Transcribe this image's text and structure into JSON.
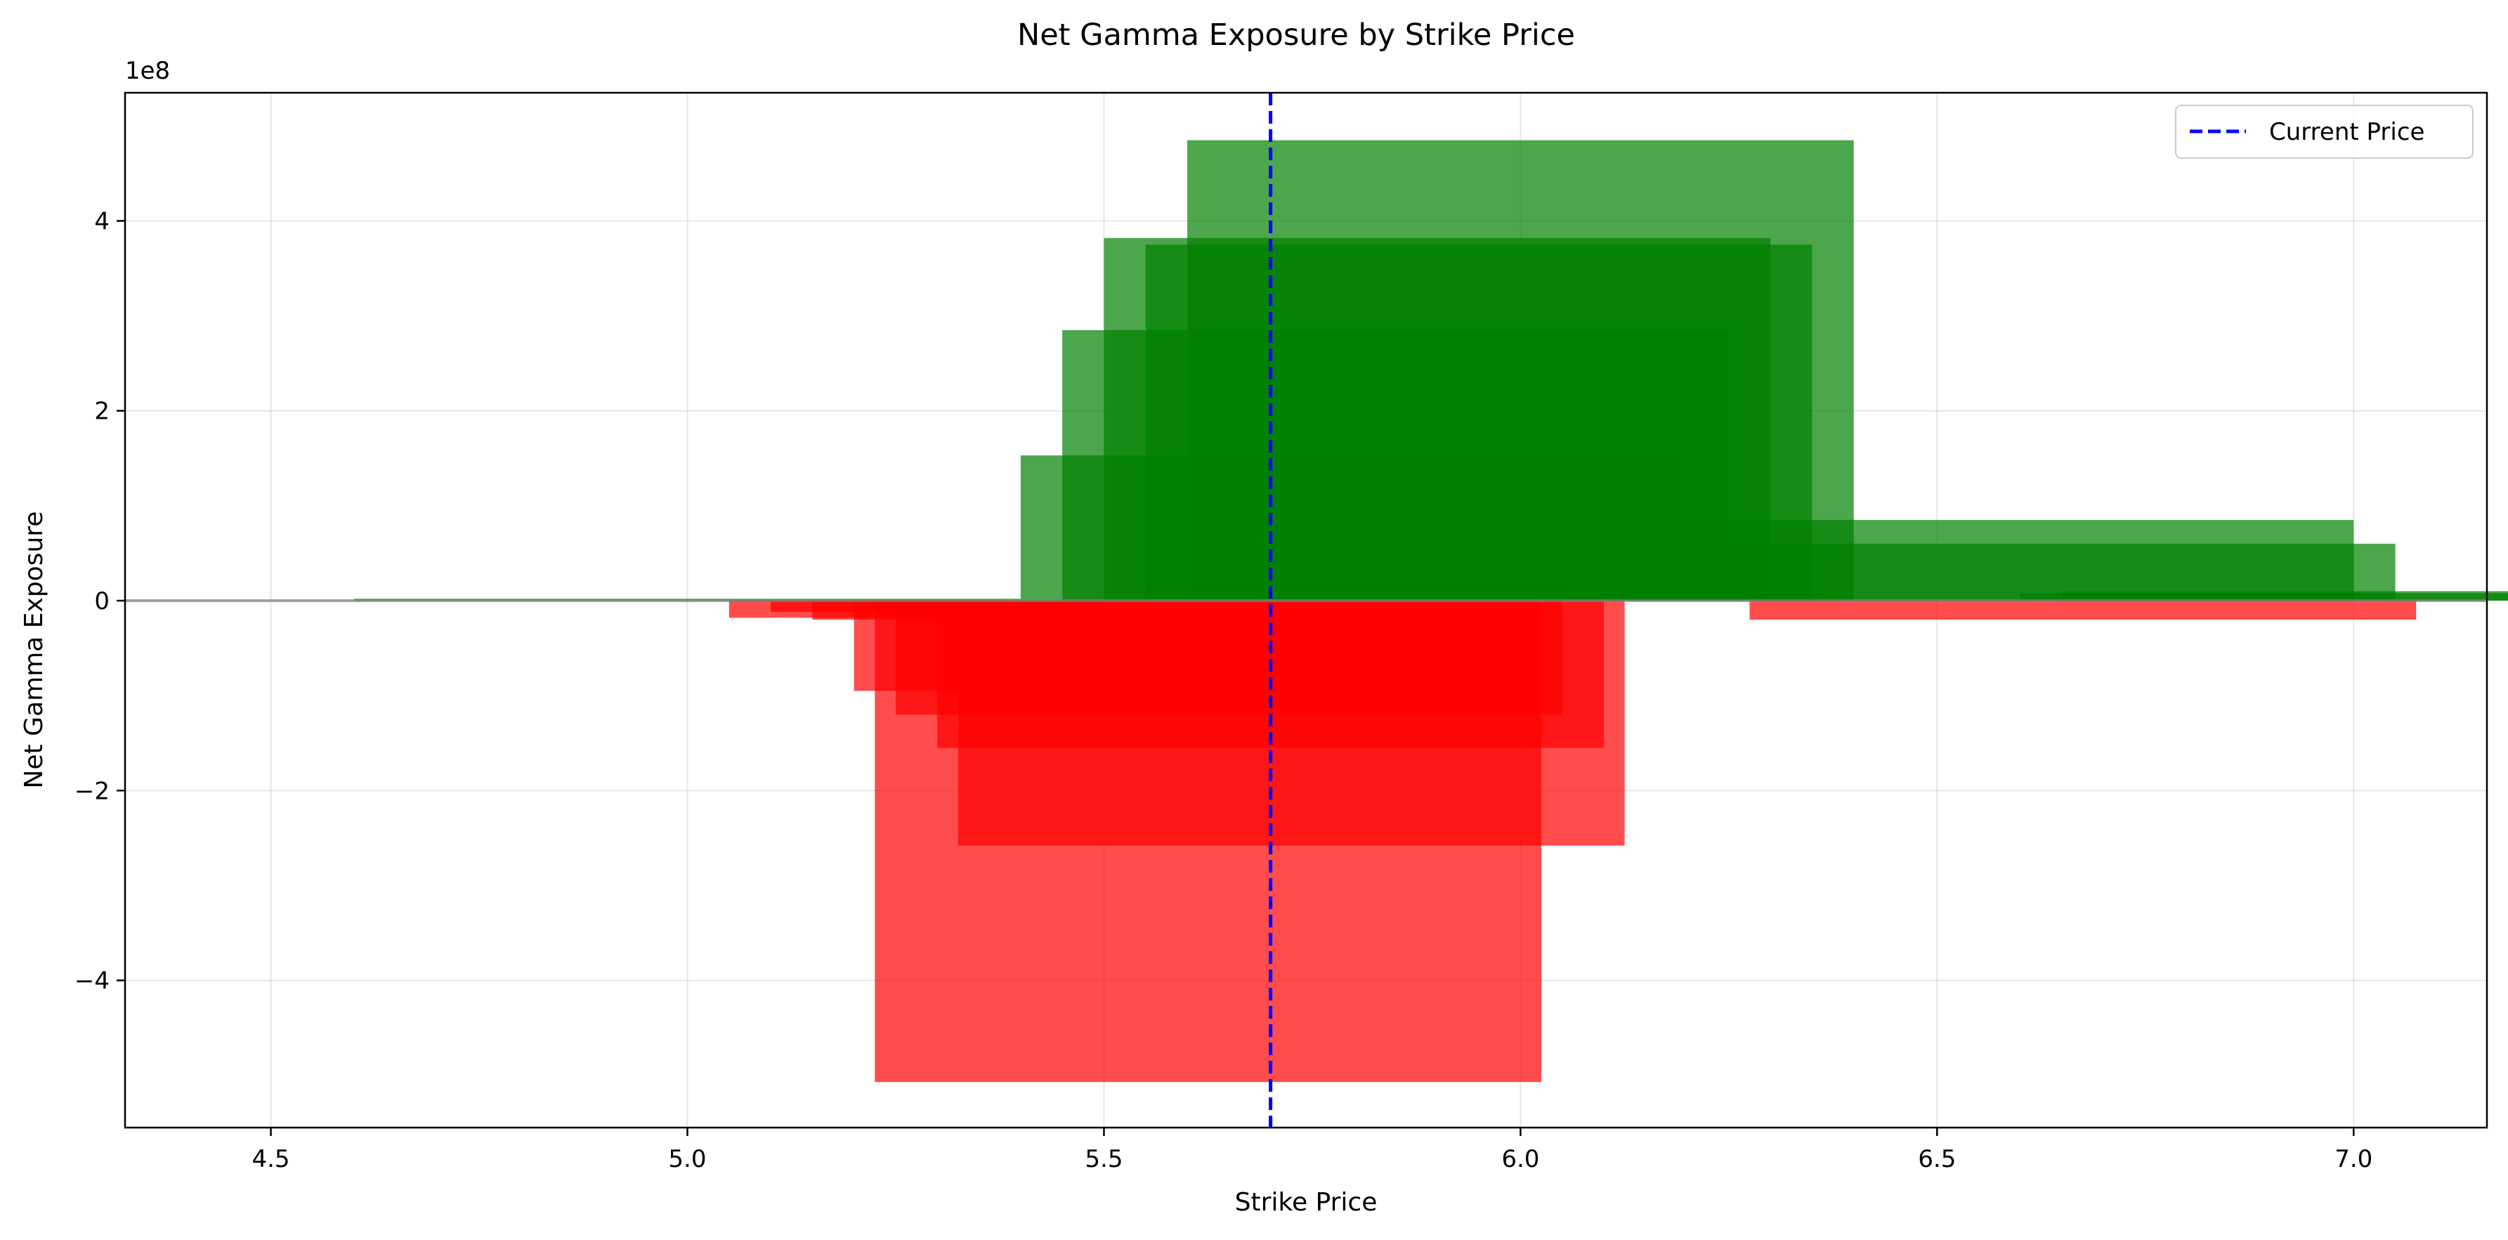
{
  "chart_data": {
    "type": "bar",
    "title": "Net Gamma Exposure by Strike Price",
    "xlabel": "Strike Price",
    "ylabel": "Net Gamma Exposure",
    "y_offset_label": "1e8",
    "xlim": [
      4.325,
      7.16
    ],
    "ylim": [
      -5.55,
      5.35
    ],
    "x_ticks": [
      4.5,
      5.0,
      5.5,
      6.0,
      6.5,
      7.0
    ],
    "x_tick_labels": [
      "4.5",
      "5.0",
      "5.5",
      "6.0",
      "6.5",
      "7.0"
    ],
    "y_ticks": [
      -4,
      -2,
      0,
      2,
      4
    ],
    "y_tick_labels": [
      "−4",
      "−2",
      "0",
      "2",
      "4"
    ],
    "grid": true,
    "legend": {
      "placement": "top-right",
      "entries": [
        {
          "label": "Current Price",
          "color": "#0000ff",
          "style": "dashed"
        }
      ]
    },
    "current_price": 5.7,
    "zero_line_color": "#808080",
    "positive_color": "#008000",
    "negative_color": "#ff0000",
    "bar_opacity": 0.7,
    "bar_width": 0.8,
    "y_unit_multiplier": 100000000,
    "bars": [
      {
        "strike": 5.0,
        "value": 0.02
      },
      {
        "strike": 5.45,
        "value": -0.18
      },
      {
        "strike": 5.5,
        "value": -0.12
      },
      {
        "strike": 5.55,
        "value": -0.2
      },
      {
        "strike": 5.6,
        "value": -0.95
      },
      {
        "strike": 5.625,
        "value": -5.07
      },
      {
        "strike": 5.65,
        "value": -1.2
      },
      {
        "strike": 5.7,
        "value": -1.55
      },
      {
        "strike": 5.725,
        "value": -2.58
      },
      {
        "strike": 5.8,
        "value": 1.53
      },
      {
        "strike": 5.85,
        "value": 2.85
      },
      {
        "strike": 5.9,
        "value": 3.82
      },
      {
        "strike": 5.95,
        "value": 3.75
      },
      {
        "strike": 6.0,
        "value": 4.85
      },
      {
        "strike": 6.675,
        "value": -0.2
      },
      {
        "strike": 6.6,
        "value": 0.85
      },
      {
        "strike": 6.65,
        "value": 0.6
      },
      {
        "strike": 7.0,
        "value": 0.08
      },
      {
        "strike": 7.05,
        "value": 0.1
      }
    ]
  }
}
